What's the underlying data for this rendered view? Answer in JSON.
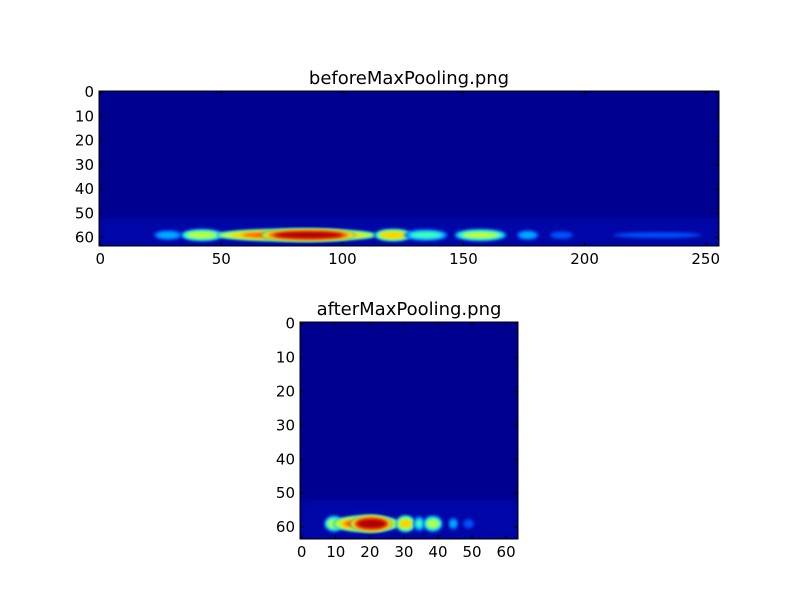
{
  "chart_data": [
    {
      "type": "heatmap",
      "title": "beforeMaxPooling.png",
      "colormap": "jet",
      "background_color": "#00008f",
      "image_size": [
        256,
        64
      ],
      "xlim": [
        -0.5,
        255.5
      ],
      "ylim": [
        63.5,
        -0.5
      ],
      "xticks": [
        0,
        50,
        100,
        150,
        200,
        250
      ],
      "yticks": [
        0,
        10,
        20,
        30,
        40,
        50,
        60
      ],
      "bright_regions": [
        {
          "row": 59,
          "x_start": 22,
          "x_end": 34,
          "intensity": 0.35
        },
        {
          "row": 59,
          "x_start": 34,
          "x_end": 50,
          "intensity": 0.65
        },
        {
          "row": 59,
          "x_start": 50,
          "x_end": 112,
          "intensity": 0.85
        },
        {
          "row": 59,
          "x_start": 68,
          "x_end": 104,
          "intensity": 1.0
        },
        {
          "row": 59,
          "x_start": 114,
          "x_end": 128,
          "intensity": 0.75
        },
        {
          "row": 59,
          "x_start": 126,
          "x_end": 143,
          "intensity": 0.5
        },
        {
          "row": 59,
          "x_start": 147,
          "x_end": 167,
          "intensity": 0.62
        },
        {
          "row": 59,
          "x_start": 172,
          "x_end": 181,
          "intensity": 0.35
        },
        {
          "row": 59,
          "x_start": 185,
          "x_end": 196,
          "intensity": 0.25
        },
        {
          "row": 59,
          "x_start": 205,
          "x_end": 255,
          "intensity": 0.15
        }
      ]
    },
    {
      "type": "heatmap",
      "title": "afterMaxPooling.png",
      "colormap": "jet",
      "background_color": "#00008f",
      "image_size": [
        64,
        64
      ],
      "xlim": [
        -0.5,
        63.5
      ],
      "ylim": [
        63.5,
        -0.5
      ],
      "xticks": [
        0,
        10,
        20,
        30,
        40,
        50,
        60
      ],
      "yticks": [
        0,
        10,
        20,
        30,
        40,
        50,
        60
      ],
      "bright_regions": [
        {
          "row": 59,
          "x_start": 7,
          "x_end": 12,
          "intensity": 0.6
        },
        {
          "row": 59,
          "x_start": 10,
          "x_end": 28,
          "intensity": 0.85
        },
        {
          "row": 59,
          "x_start": 15,
          "x_end": 26,
          "intensity": 1.0
        },
        {
          "row": 59,
          "x_start": 28,
          "x_end": 33,
          "intensity": 0.72
        },
        {
          "row": 59,
          "x_start": 33,
          "x_end": 36,
          "intensity": 0.45
        },
        {
          "row": 59,
          "x_start": 36,
          "x_end": 41,
          "intensity": 0.6
        },
        {
          "row": 59,
          "x_start": 43,
          "x_end": 46,
          "intensity": 0.3
        },
        {
          "row": 59,
          "x_start": 47,
          "x_end": 51,
          "intensity": 0.2
        }
      ]
    }
  ]
}
